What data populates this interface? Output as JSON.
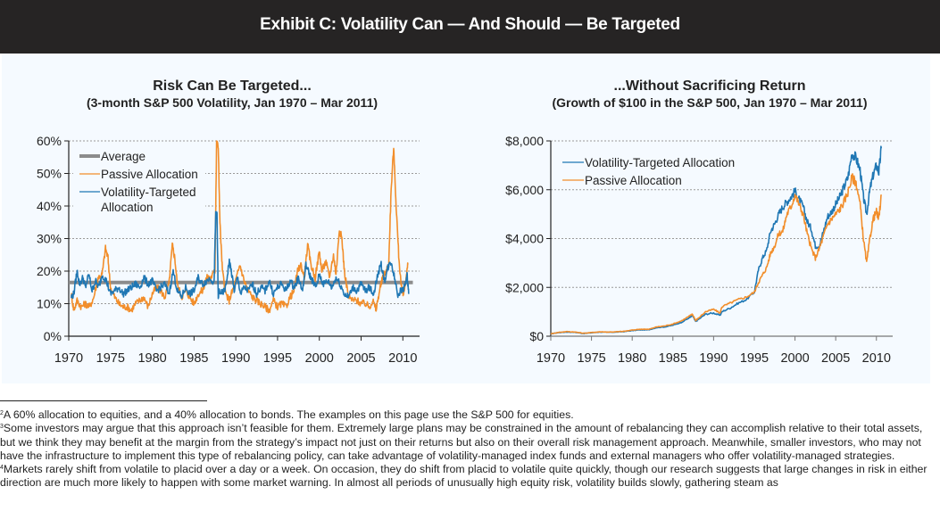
{
  "header": {
    "title": "Exhibit C: Volatility Can — And Should — Be Targeted"
  },
  "colors": {
    "passive": "#f28e2b",
    "targeted": "#1f77b4",
    "average": "#8c8c8c",
    "header_bg": "#262424",
    "panel_bg": "#f5faff"
  },
  "chart_data": [
    {
      "type": "line",
      "title": "Risk Can Be Targeted...",
      "subtitle": "(3-month S&P 500 Volatility, Jan 1970 – Mar 2011)",
      "xlabel": "",
      "ylabel": "",
      "xlim": [
        1970,
        2012
      ],
      "ylim": [
        0,
        60
      ],
      "x_ticks": [
        1970,
        1975,
        1980,
        1985,
        1990,
        1995,
        2000,
        2005,
        2010
      ],
      "x_tick_labels": [
        "1970",
        "1975",
        "1980",
        "1985",
        "1990",
        "1995",
        "2000",
        "2005",
        "2010"
      ],
      "y_ticks": [
        0,
        10,
        20,
        30,
        40,
        50,
        60
      ],
      "y_tick_labels": [
        "0%",
        "10%",
        "20%",
        "30%",
        "40%",
        "50%",
        "60%"
      ],
      "grid": "horizontal-dotted",
      "legend_position": "top-left",
      "legend": [
        "Average",
        "Passive Allocation",
        "Volatility-Targeted Allocation"
      ],
      "legend_lines": [
        [
          "Average"
        ],
        [
          "Passive Allocation"
        ],
        [
          "Volatility-Targeted",
          "Allocation"
        ]
      ],
      "series": [
        {
          "name": "Average",
          "x": [
            1970,
            2011.2
          ],
          "values": [
            16.5,
            16.5
          ]
        },
        {
          "name": "Passive Allocation",
          "x": [
            1970.3,
            1970.6,
            1971.0,
            1971.5,
            1972.0,
            1972.5,
            1973.0,
            1973.5,
            1974.0,
            1974.4,
            1974.7,
            1975.0,
            1975.5,
            1976.0,
            1976.5,
            1977.0,
            1977.5,
            1978.0,
            1978.5,
            1979.0,
            1979.5,
            1980.0,
            1980.5,
            1981.0,
            1981.5,
            1982.0,
            1982.4,
            1982.7,
            1983.0,
            1983.5,
            1984.0,
            1984.5,
            1985.0,
            1985.5,
            1986.0,
            1986.5,
            1987.0,
            1987.5,
            1987.7,
            1987.9,
            1988.1,
            1988.4,
            1988.8,
            1989.2,
            1989.6,
            1990.0,
            1990.5,
            1991.0,
            1991.5,
            1992.0,
            1992.5,
            1993.0,
            1993.5,
            1994.0,
            1994.5,
            1995.0,
            1995.5,
            1996.0,
            1996.5,
            1997.0,
            1997.4,
            1997.8,
            1998.2,
            1998.6,
            1999.0,
            1999.5,
            2000.0,
            2000.3,
            2000.8,
            2001.2,
            2001.7,
            2002.0,
            2002.4,
            2002.7,
            2003.0,
            2003.5,
            2004.0,
            2004.5,
            2005.0,
            2005.5,
            2006.0,
            2006.4,
            2006.8,
            2007.2,
            2007.6,
            2008.0,
            2008.3,
            2008.6,
            2008.9,
            2009.2,
            2009.5,
            2009.8,
            2010.1,
            2010.4,
            2010.6
          ],
          "values": [
            13,
            8,
            11,
            9,
            10,
            9,
            12,
            18,
            19,
            27,
            24,
            15,
            12,
            10,
            9,
            9,
            8,
            10,
            11,
            12,
            9,
            13,
            15,
            14,
            12,
            16,
            28,
            24,
            16,
            12,
            14,
            12,
            10,
            13,
            14,
            18,
            18,
            20,
            60,
            58,
            35,
            20,
            13,
            11,
            14,
            17,
            22,
            17,
            14,
            12,
            11,
            10,
            9,
            8,
            11,
            9,
            10,
            9,
            12,
            14,
            20,
            22,
            18,
            28,
            22,
            18,
            26,
            20,
            23,
            18,
            25,
            19,
            33,
            30,
            20,
            12,
            11,
            11,
            10,
            10,
            9,
            11,
            8,
            14,
            18,
            20,
            22,
            45,
            58,
            40,
            25,
            15,
            13,
            18,
            22
          ],
          "peaks_noted": {
            "1987_crash": 60,
            "2008_crisis": 59
          }
        },
        {
          "name": "Volatility-Targeted Allocation",
          "x": [
            1970.3,
            1970.6,
            1971.0,
            1971.3,
            1971.7,
            1972.0,
            1972.4,
            1972.8,
            1973.2,
            1973.6,
            1974.0,
            1974.5,
            1975.0,
            1975.5,
            1976.0,
            1976.5,
            1977.0,
            1977.5,
            1978.0,
            1978.5,
            1979.0,
            1979.5,
            1980.0,
            1980.5,
            1981.0,
            1981.5,
            1982.0,
            1982.5,
            1983.0,
            1983.5,
            1984.0,
            1984.5,
            1985.0,
            1985.5,
            1986.0,
            1986.5,
            1987.0,
            1987.4,
            1987.6,
            1987.75,
            1987.9,
            1988.0,
            1988.4,
            1988.8,
            1989.2,
            1989.4,
            1989.8,
            1990.2,
            1990.6,
            1991.0,
            1991.5,
            1992.0,
            1992.5,
            1993.0,
            1993.5,
            1994.0,
            1994.5,
            1995.0,
            1995.5,
            1996.0,
            1996.5,
            1997.0,
            1997.5,
            1998.0,
            1998.4,
            1998.8,
            1999.2,
            1999.6,
            2000.0,
            2000.5,
            2001.0,
            2001.5,
            2002.0,
            2002.5,
            2003.0,
            2003.5,
            2004.0,
            2004.5,
            2005.0,
            2005.5,
            2006.0,
            2006.5,
            2007.0,
            2007.4,
            2007.8,
            2008.2,
            2008.6,
            2009.0,
            2009.4,
            2009.8,
            2010.2,
            2010.5,
            2010.7
          ],
          "values": [
            12,
            13,
            20,
            16,
            18,
            15,
            19,
            14,
            17,
            15,
            19,
            17,
            13,
            14,
            15,
            13,
            14,
            15,
            16,
            15,
            18,
            16,
            17,
            14,
            15,
            16,
            13,
            20,
            14,
            12,
            15,
            13,
            14,
            18,
            16,
            17,
            18,
            16,
            38,
            37,
            12,
            14,
            13,
            15,
            23,
            21,
            14,
            18,
            13,
            15,
            14,
            16,
            13,
            15,
            14,
            17,
            13,
            15,
            16,
            14,
            17,
            15,
            18,
            14,
            22,
            19,
            17,
            15,
            19,
            16,
            17,
            15,
            18,
            16,
            13,
            12,
            15,
            14,
            16,
            14,
            15,
            13,
            19,
            22,
            17,
            21,
            23,
            18,
            13,
            14,
            15,
            19,
            13
          ]
        }
      ]
    },
    {
      "type": "line",
      "title": "...Without Sacrificing Return",
      "subtitle": "(Growth of $100 in the S&P 500, Jan 1970 – Mar 2011)",
      "xlabel": "",
      "ylabel": "",
      "xlim": [
        1970,
        2012
      ],
      "ylim": [
        0,
        8000
      ],
      "x_ticks": [
        1970,
        1975,
        1980,
        1985,
        1990,
        1995,
        2000,
        2005,
        2010
      ],
      "x_tick_labels": [
        "1970",
        "1975",
        "1980",
        "1985",
        "1990",
        "1995",
        "2000",
        "2005",
        "2010"
      ],
      "y_ticks": [
        0,
        2000,
        4000,
        6000,
        8000
      ],
      "y_tick_labels": [
        "$0",
        "$2,000",
        "$4,000",
        "$6,000",
        "$8,000"
      ],
      "grid": "horizontal-dotted",
      "legend_position": "top-left",
      "legend": [
        "Volatility-Targeted Allocation",
        "Passive Allocation"
      ],
      "series": [
        {
          "name": "Volatility-Targeted Allocation",
          "x": [
            1970,
            1971,
            1972,
            1973,
            1974,
            1975,
            1976,
            1977,
            1978,
            1979,
            1980,
            1981,
            1982,
            1983,
            1984,
            1985,
            1986,
            1987,
            1987.4,
            1987.8,
            1988,
            1989,
            1990,
            1990.8,
            1991,
            1992,
            1993,
            1994,
            1995,
            1995.5,
            1996,
            1996.5,
            1997,
            1997.5,
            1998,
            1998.5,
            1999,
            1999.5,
            2000,
            2000.5,
            2001,
            2001.5,
            2002,
            2002.5,
            2003,
            2003.5,
            2004,
            2004.5,
            2005,
            2005.5,
            2006,
            2006.5,
            2007,
            2007.5,
            2008,
            2008.4,
            2008.8,
            2009.2,
            2009.6,
            2010,
            2010.3,
            2010.6
          ],
          "values": [
            100,
            150,
            170,
            160,
            110,
            140,
            170,
            160,
            170,
            190,
            230,
            260,
            260,
            350,
            380,
            450,
            560,
            750,
            850,
            600,
            650,
            900,
            950,
            850,
            1000,
            1150,
            1350,
            1500,
            1800,
            2700,
            3200,
            3500,
            4300,
            4600,
            5000,
            5300,
            5500,
            5700,
            5950,
            5600,
            5300,
            4700,
            4400,
            3700,
            3700,
            4300,
            4900,
            5100,
            5400,
            5700,
            6100,
            6500,
            7500,
            7300,
            6800,
            5700,
            5000,
            6000,
            6600,
            7000,
            6700,
            7700
          ]
        },
        {
          "name": "Passive Allocation",
          "x": [
            1970,
            1971,
            1972,
            1973,
            1974,
            1975,
            1976,
            1977,
            1978,
            1979,
            1980,
            1981,
            1982,
            1983,
            1984,
            1985,
            1986,
            1987,
            1987.4,
            1987.8,
            1988,
            1989,
            1990,
            1990.8,
            1991,
            1992,
            1993,
            1994,
            1995,
            1995.5,
            1996,
            1996.5,
            1997,
            1997.5,
            1998,
            1998.5,
            1999,
            1999.5,
            2000,
            2000.5,
            2001,
            2001.5,
            2002,
            2002.5,
            2003,
            2003.5,
            2004,
            2004.5,
            2005,
            2005.5,
            2006,
            2006.5,
            2007,
            2007.5,
            2008,
            2008.4,
            2008.8,
            2009.2,
            2009.6,
            2010,
            2010.3,
            2010.6
          ],
          "values": [
            100,
            160,
            190,
            170,
            120,
            150,
            180,
            170,
            180,
            200,
            250,
            290,
            280,
            380,
            420,
            500,
            620,
            820,
            900,
            650,
            700,
            1000,
            1100,
            950,
            1200,
            1350,
            1500,
            1600,
            1800,
            2200,
            2500,
            2800,
            3400,
            3700,
            4200,
            4300,
            5000,
            5300,
            5800,
            5400,
            5000,
            4200,
            3600,
            3200,
            3600,
            4100,
            4600,
            4800,
            5000,
            5200,
            5500,
            5900,
            6500,
            6300,
            5400,
            4000,
            3000,
            4000,
            4800,
            5100,
            4800,
            5800
          ]
        }
      ]
    }
  ],
  "footnotes": [
    {
      "marker": "2",
      "text": "A 60% allocation to equities, and a 40% allocation to bonds. The examples on this page use the S&P 500 for equities."
    },
    {
      "marker": "3",
      "text": "Some investors may argue that this approach isn’t feasible for them. Extremely large plans may be constrained in the amount of rebalancing they can accomplish relative to their total assets, but we think they may benefit at the margin from the strategy’s impact not just on their returns but also on their overall risk management approach.  Meanwhile, smaller investors, who may not have the infrastructure to implement this type of rebalancing policy, can take advantage of volatility-managed index funds and external managers who offer volatility-managed strategies."
    },
    {
      "marker": "4",
      "text": "Markets rarely shift from volatile to placid over a day or a week.  On occasion, they do shift from placid to volatile quite quickly, though our research suggests that large changes in risk in either direction are much more likely to happen with some market warning. In almost all periods of unusually high equity risk, volatility builds slowly, gathering steam as"
    }
  ]
}
